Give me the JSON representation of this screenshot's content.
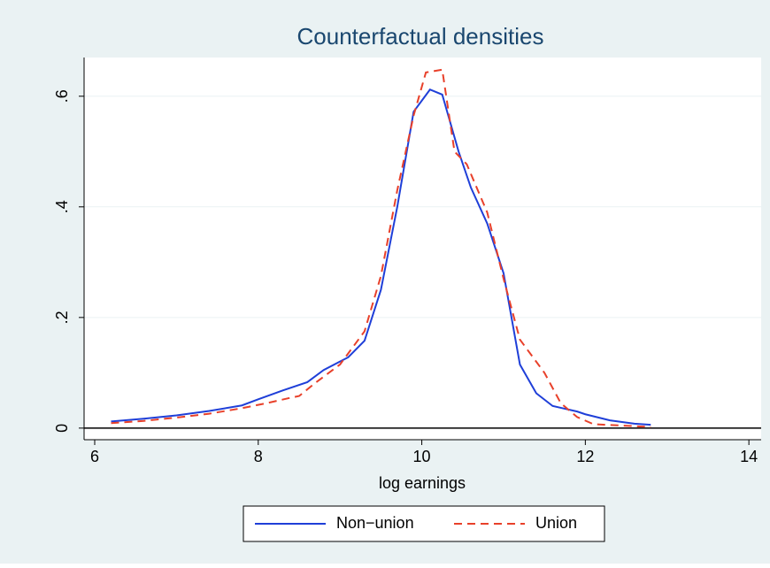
{
  "chart_data": {
    "type": "line",
    "title": "Counterfactual densities",
    "x_label": "log earnings",
    "xlim": [
      5.87,
      14.15
    ],
    "xticks": [
      6,
      8,
      10,
      12,
      14
    ],
    "ylim": [
      -0.021,
      0.67
    ],
    "yticks": [
      0,
      {
        "value": 0.2,
        "label": ".2"
      },
      {
        "value": 0.4,
        "label": ".4"
      },
      {
        "value": 0.6,
        "label": ".6"
      }
    ],
    "grid": true,
    "legend": "bottom",
    "series": [
      {
        "name": "Non−union",
        "color": "#1f3fd8",
        "dash": false,
        "x": [
          6.2,
          6.6,
          7.0,
          7.4,
          7.8,
          8.0,
          8.3,
          8.6,
          8.8,
          9.1,
          9.3,
          9.5,
          9.7,
          9.9,
          10.1,
          10.25,
          10.45,
          10.6,
          10.8,
          11.0,
          11.2,
          11.4,
          11.6,
          11.9,
          12.0,
          12.3,
          12.6,
          12.8
        ],
        "values": [
          0.012,
          0.017,
          0.023,
          0.031,
          0.041,
          0.052,
          0.068,
          0.083,
          0.105,
          0.128,
          0.158,
          0.25,
          0.4,
          0.572,
          0.612,
          0.603,
          0.5,
          0.435,
          0.37,
          0.28,
          0.115,
          0.063,
          0.04,
          0.03,
          0.025,
          0.014,
          0.008,
          0.006
        ]
      },
      {
        "name": "Union",
        "color": "#e8402a",
        "dash": true,
        "x": [
          6.2,
          6.6,
          7.0,
          7.4,
          7.8,
          8.1,
          8.4,
          8.5,
          8.7,
          9.0,
          9.3,
          9.5,
          9.7,
          9.9,
          10.05,
          10.25,
          10.4,
          10.55,
          10.8,
          11.0,
          11.2,
          11.35,
          11.5,
          11.7,
          11.9,
          12.1,
          12.4,
          12.8
        ],
        "values": [
          0.009,
          0.013,
          0.019,
          0.026,
          0.036,
          0.045,
          0.055,
          0.058,
          0.082,
          0.115,
          0.175,
          0.275,
          0.43,
          0.565,
          0.643,
          0.648,
          0.5,
          0.477,
          0.39,
          0.27,
          0.16,
          0.13,
          0.1,
          0.045,
          0.02,
          0.007,
          0.005,
          0.002
        ]
      }
    ]
  }
}
